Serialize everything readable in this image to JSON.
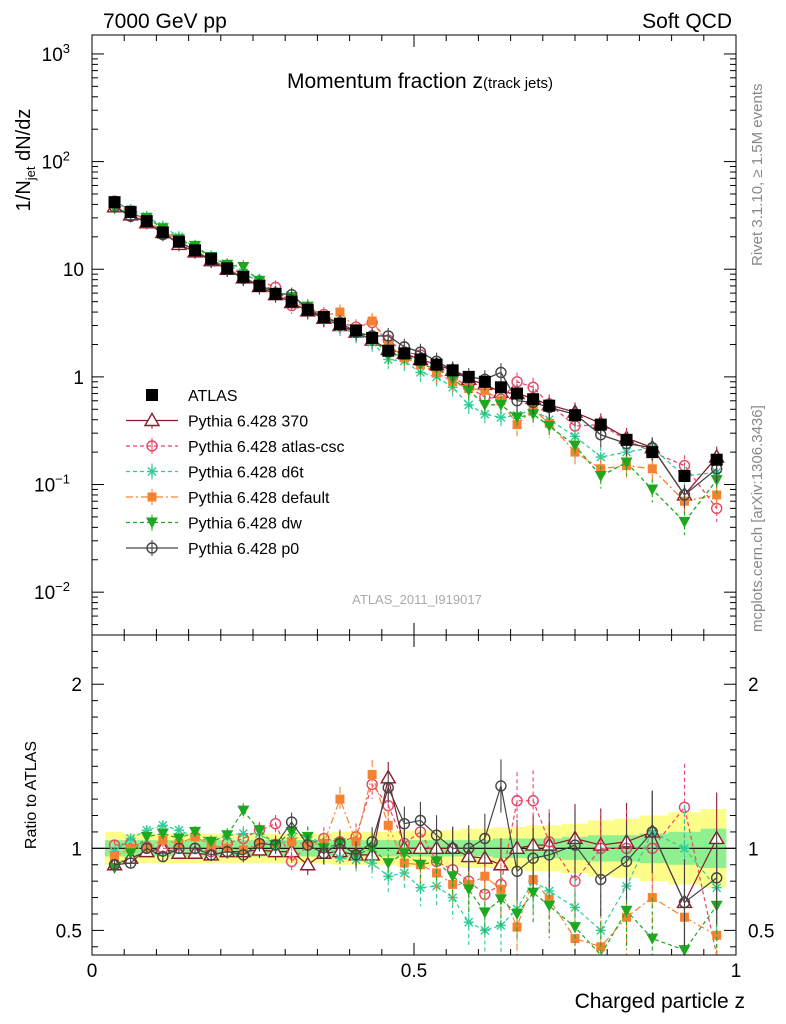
{
  "header": {
    "left": "7000 GeV pp",
    "right": "Soft QCD"
  },
  "side_labels": {
    "rivet": "Rivet 3.1.10, ≥ 1.5M events",
    "site": "mcplots.cern.ch [arXiv:1306.3436]"
  },
  "chart_data": [
    {
      "type": "scatter",
      "title": "Momentum fraction z",
      "title_sub": "(track jets)",
      "ylabel": "1/N",
      "ylabel_sub": "jet",
      "ylabel_rest": " dN/dz",
      "watermark": "ATLAS_2011_I919017",
      "ylim": [
        0.004,
        1500
      ],
      "yscale": "log",
      "y_ticks": [
        {
          "v": 0.01,
          "base": "10",
          "exp": "−2"
        },
        {
          "v": 0.1,
          "base": "10",
          "exp": "−1"
        },
        {
          "v": 1,
          "base": "1",
          "exp": ""
        },
        {
          "v": 10,
          "base": "10",
          "exp": ""
        },
        {
          "v": 100,
          "base": "10",
          "exp": "2"
        },
        {
          "v": 1000,
          "base": "10",
          "exp": "3"
        }
      ],
      "xlim": [
        0,
        1
      ],
      "legend_position": "middle-left",
      "x": [
        0.035,
        0.06,
        0.085,
        0.11,
        0.135,
        0.16,
        0.185,
        0.21,
        0.235,
        0.26,
        0.285,
        0.31,
        0.335,
        0.36,
        0.385,
        0.41,
        0.435,
        0.46,
        0.485,
        0.51,
        0.535,
        0.56,
        0.585,
        0.61,
        0.635,
        0.66,
        0.685,
        0.71,
        0.75,
        0.79,
        0.83,
        0.87,
        0.92,
        0.97
      ],
      "series": [
        {
          "name": "ATLAS",
          "color": "#000000",
          "marker": "filled-square",
          "values": [
            42,
            34,
            28,
            22,
            18,
            15,
            12.5,
            10.2,
            8.5,
            7.0,
            5.9,
            5.0,
            4.2,
            3.6,
            3.1,
            2.7,
            2.3,
            1.75,
            1.65,
            1.45,
            1.3,
            1.15,
            1.0,
            0.9,
            0.8,
            0.7,
            0.62,
            0.54,
            0.44,
            0.36,
            0.26,
            0.2,
            0.12,
            0.17
          ]
        },
        {
          "name": "Pythia 6.428 370",
          "color": "#8b1a2b",
          "marker": "open-triangle",
          "dash": "",
          "values": [
            38,
            32,
            27,
            22,
            17,
            14.5,
            12,
            10,
            8.3,
            6.9,
            5.8,
            4.9,
            4.1,
            3.5,
            3.0,
            2.6,
            2.2,
            1.8,
            1.65,
            1.45,
            1.3,
            1.15,
            0.95,
            0.85,
            0.72,
            0.7,
            0.63,
            0.55,
            0.47,
            0.37,
            0.27,
            0.22,
            0.08,
            0.18
          ]
        },
        {
          "name": "Pythia 6.428 atlas-csc",
          "color": "#e8456a",
          "marker": "open-circle",
          "dash": "4,3",
          "values": [
            43,
            35,
            28,
            22,
            18,
            15,
            12.2,
            10.5,
            9.0,
            7.8,
            6.8,
            4.6,
            4.3,
            3.8,
            3.2,
            2.9,
            3.2,
            2.2,
            1.7,
            1.6,
            1.2,
            1.0,
            0.8,
            0.65,
            0.62,
            0.9,
            0.8,
            0.56,
            0.35,
            0.36,
            0.26,
            0.2,
            0.15,
            0.06
          ]
        },
        {
          "name": "Pythia 6.428 d6t",
          "color": "#2ecc9a",
          "marker": "star",
          "dash": "4,3",
          "values": [
            41,
            36,
            31,
            25,
            20,
            16,
            13,
            11,
            9.3,
            7.6,
            6.0,
            5.3,
            4.5,
            3.7,
            2.9,
            2.5,
            2.1,
            1.45,
            1.4,
            1.1,
            1.0,
            0.8,
            0.55,
            0.45,
            0.42,
            0.44,
            0.5,
            0.4,
            0.28,
            0.18,
            0.2,
            0.22,
            0.12,
            0.13
          ]
        },
        {
          "name": "Pythia 6.428 default",
          "color": "#f58231",
          "marker": "filled-square-small",
          "dash": "7,3,2,3",
          "values": [
            40,
            34,
            28,
            23,
            18.5,
            16,
            12.7,
            10.2,
            8.4,
            7.2,
            6.1,
            5.2,
            4.3,
            3.7,
            4.0,
            2.8,
            3.3,
            2.0,
            1.5,
            1.3,
            1.1,
            0.9,
            0.78,
            0.75,
            0.6,
            0.36,
            0.5,
            0.37,
            0.2,
            0.14,
            0.15,
            0.14,
            0.07,
            0.08
          ]
        },
        {
          "name": "Pythia 6.428 dw",
          "color": "#1ea81e",
          "marker": "filled-triangle-down",
          "dash": "4,3",
          "values": [
            37,
            33,
            30,
            24,
            19,
            16.5,
            13,
            11,
            10.5,
            7.8,
            6.0,
            5.5,
            4.5,
            3.6,
            3.2,
            2.6,
            2.3,
            1.6,
            1.6,
            1.3,
            1.2,
            0.95,
            0.75,
            0.55,
            0.55,
            0.42,
            0.45,
            0.35,
            0.23,
            0.12,
            0.16,
            0.09,
            0.045,
            0.11
          ]
        },
        {
          "name": "Pythia 6.428 p0",
          "color": "#444444",
          "marker": "open-circle",
          "dash": "",
          "values": [
            38,
            31,
            28,
            21,
            18,
            15,
            12,
            10,
            8.2,
            7.2,
            6.0,
            5.8,
            4.3,
            3.5,
            3.2,
            2.6,
            2.4,
            2.4,
            1.9,
            1.7,
            1.4,
            1.15,
            1.0,
            0.95,
            1.1,
            0.6,
            0.58,
            0.52,
            0.45,
            0.29,
            0.24,
            0.22,
            0.08,
            0.14
          ]
        }
      ]
    },
    {
      "type": "scatter",
      "xlabel": "Charged particle z",
      "ylabel": "Ratio to ATLAS",
      "ylim": [
        0.35,
        2.3
      ],
      "xlim": [
        0,
        1
      ],
      "y_ticks": [
        0.5,
        1,
        2
      ],
      "y_tick_labels": [
        "0.5",
        "1",
        "2"
      ],
      "x_ticks": [
        0,
        0.5,
        1
      ],
      "x_tick_labels": [
        "0",
        "0.5",
        "1"
      ],
      "band_inner_halfwidth": [
        0.05,
        0.05,
        0.05,
        0.05,
        0.05,
        0.05,
        0.05,
        0.05,
        0.05,
        0.05,
        0.05,
        0.05,
        0.05,
        0.05,
        0.05,
        0.05,
        0.05,
        0.05,
        0.05,
        0.05,
        0.05,
        0.05,
        0.05,
        0.05,
        0.06,
        0.06,
        0.06,
        0.06,
        0.07,
        0.08,
        0.08,
        0.09,
        0.1,
        0.12
      ],
      "band_outer_halfwidth": [
        0.1,
        0.09,
        0.09,
        0.09,
        0.09,
        0.09,
        0.09,
        0.09,
        0.09,
        0.09,
        0.09,
        0.09,
        0.09,
        0.09,
        0.1,
        0.1,
        0.1,
        0.1,
        0.11,
        0.11,
        0.11,
        0.11,
        0.12,
        0.12,
        0.13,
        0.13,
        0.14,
        0.14,
        0.15,
        0.17,
        0.18,
        0.2,
        0.22,
        0.24
      ],
      "series": [
        {
          "name": "Pythia 6.428 370",
          "values": [
            0.9,
            0.94,
            0.98,
            1.0,
            0.97,
            0.97,
            0.96,
            0.98,
            0.98,
            0.99,
            0.98,
            0.98,
            0.9,
            0.97,
            0.98,
            0.96,
            0.96,
            1.43,
            1.0,
            1.0,
            1.0,
            1.0,
            0.95,
            0.94,
            0.9,
            1.0,
            1.02,
            1.02,
            1.06,
            1.02,
            1.04,
            1.1,
            0.67,
            1.06
          ]
        },
        {
          "name": "Pythia 6.428 atlas-csc",
          "values": [
            1.02,
            1.03,
            1.01,
            1.0,
            1.0,
            1.0,
            0.98,
            1.03,
            1.06,
            1.11,
            1.15,
            0.92,
            1.02,
            1.06,
            1.04,
            1.07,
            1.39,
            1.26,
            1.03,
            1.1,
            0.92,
            0.87,
            0.8,
            0.72,
            0.78,
            1.29,
            1.29,
            1.04,
            0.8,
            1.0,
            1.0,
            1.0,
            1.25,
            0.35
          ]
        },
        {
          "name": "Pythia 6.428 d6t",
          "values": [
            0.98,
            1.06,
            1.11,
            1.14,
            1.11,
            1.07,
            1.04,
            1.08,
            1.09,
            1.09,
            1.02,
            1.06,
            1.07,
            1.03,
            0.94,
            0.93,
            0.91,
            0.83,
            0.85,
            0.76,
            0.77,
            0.7,
            0.55,
            0.5,
            0.53,
            0.63,
            0.8,
            0.74,
            0.64,
            0.5,
            0.77,
            1.1,
            1.0,
            0.76
          ]
        },
        {
          "name": "Pythia 6.428 default",
          "values": [
            0.95,
            1.0,
            1.0,
            1.05,
            1.03,
            1.07,
            1.02,
            1.0,
            0.99,
            1.03,
            1.03,
            1.04,
            1.02,
            1.03,
            1.3,
            1.04,
            1.45,
            1.14,
            0.91,
            0.9,
            0.85,
            0.78,
            0.78,
            0.83,
            0.75,
            0.52,
            0.81,
            0.69,
            0.45,
            0.4,
            0.58,
            0.7,
            0.58,
            0.47
          ]
        },
        {
          "name": "Pythia 6.428 dw",
          "values": [
            0.88,
            0.97,
            1.07,
            1.09,
            1.06,
            1.1,
            1.04,
            1.08,
            1.23,
            1.11,
            1.02,
            1.1,
            1.07,
            1.0,
            1.03,
            0.96,
            1.0,
            0.91,
            0.97,
            0.9,
            0.92,
            0.83,
            0.75,
            0.61,
            0.69,
            0.6,
            0.73,
            0.65,
            0.52,
            0.33,
            0.62,
            0.45,
            0.38,
            0.65
          ]
        },
        {
          "name": "Pythia 6.428 p0",
          "values": [
            0.9,
            0.91,
            1.0,
            0.95,
            1.0,
            1.0,
            0.96,
            0.98,
            0.96,
            1.03,
            1.02,
            1.16,
            1.02,
            0.97,
            1.03,
            0.96,
            1.04,
            1.37,
            1.15,
            1.17,
            1.08,
            1.0,
            1.0,
            1.06,
            1.38,
            0.86,
            0.94,
            0.96,
            1.02,
            0.81,
            0.92,
            1.1,
            0.67,
            0.82
          ]
        }
      ]
    }
  ]
}
